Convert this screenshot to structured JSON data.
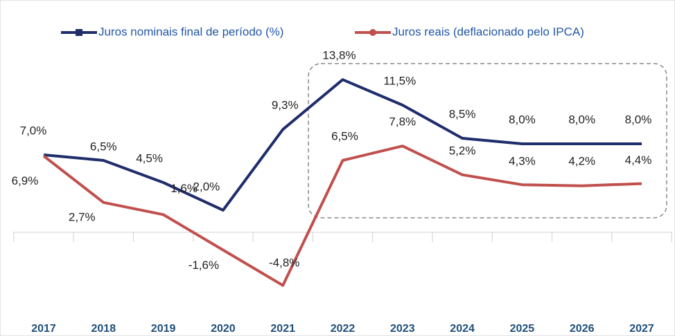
{
  "chart_data": {
    "type": "line",
    "categories": [
      "2017",
      "2018",
      "2019",
      "2020",
      "2021",
      "2022",
      "2023",
      "2024",
      "2025",
      "2026",
      "2027"
    ],
    "series": [
      {
        "name": "Juros nominais final de período (%)",
        "color": "#1f2d6b",
        "values": [
          7.0,
          6.5,
          4.5,
          2.0,
          9.3,
          13.8,
          11.5,
          8.5,
          8.0,
          8.0,
          8.0
        ],
        "value_labels": [
          "7,0%",
          "6,5%",
          "4,5%",
          "2,0%",
          "9,3%",
          "13,8%",
          "11,5%",
          "8,5%",
          "8,0%",
          "8,0%",
          "8,0%"
        ]
      },
      {
        "name": "Juros reais (deflacionado pelo IPCA)",
        "color": "#c0504d",
        "values": [
          6.9,
          2.7,
          1.6,
          -1.6,
          -4.8,
          6.5,
          7.8,
          5.2,
          4.3,
          4.2,
          4.4
        ],
        "value_labels": [
          "6,9%",
          "2,7%",
          "1,6%",
          "-1,6%",
          "-4,8%",
          "6,5%",
          "7,8%",
          "5,2%",
          "4,3%",
          "4,2%",
          "4,4%"
        ]
      }
    ],
    "ylim": [
      -8,
      17
    ],
    "legend": "top"
  }
}
